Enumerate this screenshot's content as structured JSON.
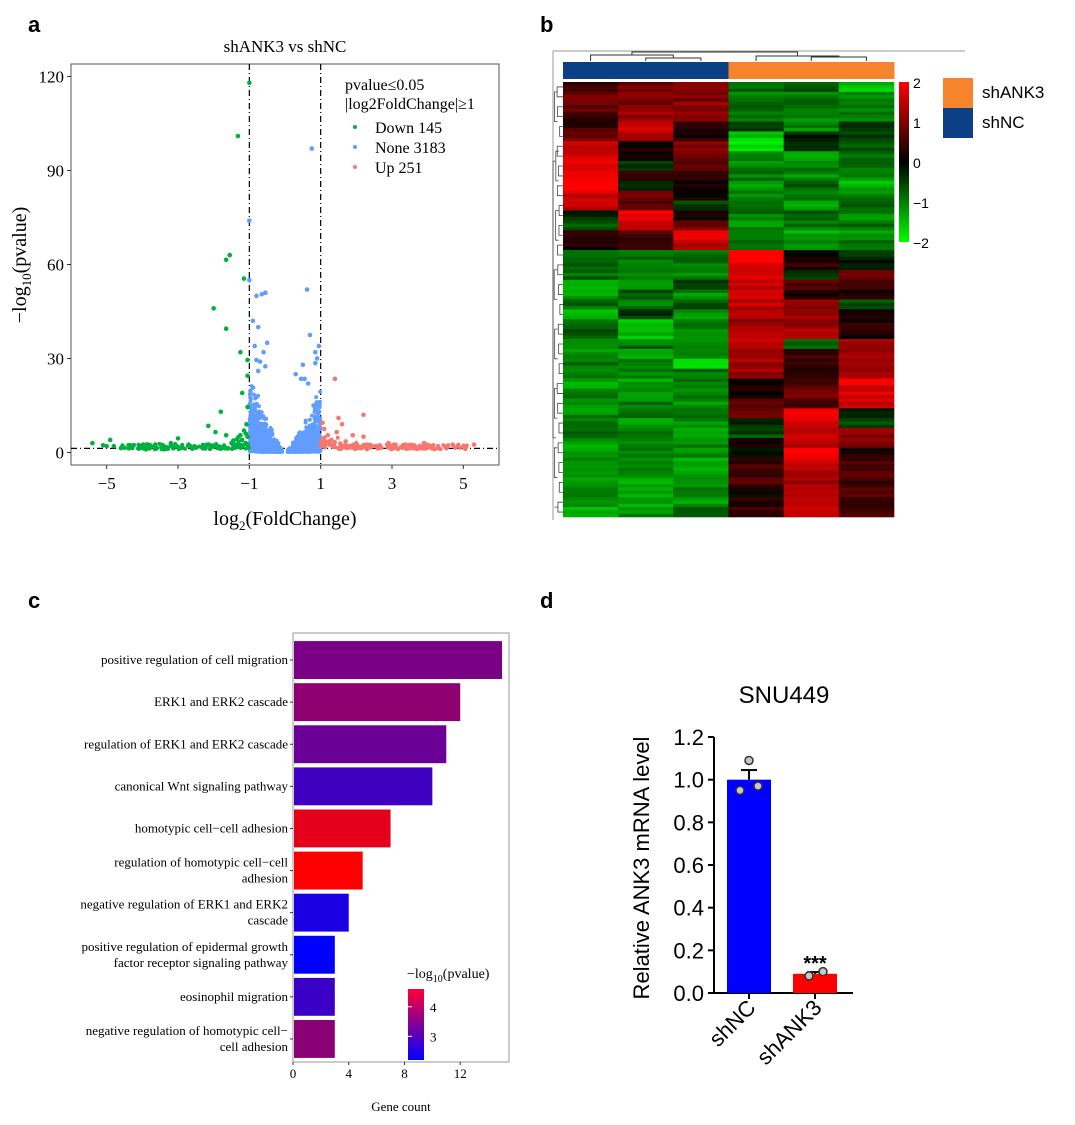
{
  "panels": {
    "a": "a",
    "b": "b",
    "c": "c",
    "d": "d"
  },
  "chart_data": [
    {
      "id": "volcano",
      "type": "scatter",
      "title": "shANK3 vs shNC",
      "xlabel_main": "log",
      "xlabel_sub": "2",
      "xlabel_rest": "(FoldChange)",
      "ylabel_main": "−log",
      "ylabel_sub": "10",
      "ylabel_rest": "(pvalue)",
      "xlim": [
        -6,
        6
      ],
      "ylim": [
        -4,
        124
      ],
      "xticks": [
        -5,
        -3,
        -1,
        1,
        3,
        5
      ],
      "xtick_labels": [
        "−5",
        "−3",
        "−1",
        "1",
        "3",
        "5"
      ],
      "yticks": [
        0,
        30,
        60,
        90,
        120
      ],
      "ytick_labels": [
        "0",
        "30",
        "60",
        "90",
        "120"
      ],
      "thresholds": {
        "log2fc": [
          -1,
          1
        ],
        "neg_log10_p": 1.3
      },
      "legend": {
        "title_line1": "pvalue≤0.05",
        "title_line2": "|log2FoldChange|≥1",
        "entries": [
          {
            "label": "Down 145",
            "color": "#00b140"
          },
          {
            "label": "None 3183",
            "color": "#619cff"
          },
          {
            "label": "Up 251",
            "color": "#f8766d"
          }
        ],
        "placement": "top-right"
      },
      "series": [
        {
          "name": "Down",
          "color": "#00b140",
          "count": 145,
          "points": [
            [
              -1.0,
              118
            ],
            [
              -1.32,
              101
            ],
            [
              -1.55,
              63
            ],
            [
              -1.65,
              61.5
            ],
            [
              -1.15,
              55.5
            ],
            [
              -2.0,
              46
            ],
            [
              -1.65,
              39.5
            ],
            [
              -1.25,
              32
            ],
            [
              -1.05,
              29.5
            ],
            [
              -1.05,
              24.5
            ],
            [
              -1.2,
              19
            ],
            [
              -1.05,
              14.5
            ],
            [
              -1.8,
              13
            ],
            [
              -2.15,
              8.5
            ],
            [
              -1.95,
              6.5
            ],
            [
              -1.65,
              5.5
            ],
            [
              -1.3,
              5
            ],
            [
              -1.1,
              6
            ],
            [
              -1.05,
              5
            ],
            [
              -1.2,
              4
            ],
            [
              -3.0,
              4.5
            ],
            [
              -3.2,
              3
            ],
            [
              -2.7,
              2.5
            ],
            [
              -4.9,
              4
            ],
            [
              -5.4,
              3
            ],
            [
              -5.0,
              2
            ],
            [
              -4.8,
              2
            ],
            [
              -4.5,
              1.5
            ],
            [
              -4.3,
              1.5
            ],
            [
              -4.1,
              1.2
            ],
            [
              -3.9,
              1
            ],
            [
              -3.6,
              1.5
            ],
            [
              -3.4,
              1
            ],
            [
              -2.5,
              1.5
            ],
            [
              -2.3,
              1.3
            ],
            [
              -2.1,
              1.2
            ],
            [
              -1.9,
              2
            ],
            [
              -1.7,
              1.5
            ],
            [
              -1.5,
              3
            ],
            [
              -1.4,
              2.5
            ],
            [
              -1.3,
              3.5
            ],
            [
              -1.2,
              2
            ],
            [
              -1.1,
              3
            ],
            [
              -1.05,
              2.5
            ],
            [
              -1.02,
              1.5
            ],
            [
              -1.4,
              1.5
            ],
            [
              -1.6,
              1.3
            ],
            [
              -1.8,
              1.2
            ],
            [
              -2.6,
              1.2
            ],
            [
              -2.9,
              1.5
            ],
            [
              -3.3,
              1.2
            ],
            [
              -3.8,
              1.3
            ],
            [
              -4.0,
              1.4
            ],
            [
              -4.6,
              1.4
            ],
            [
              -5.1,
              2.3
            ],
            [
              -1.15,
              7
            ],
            [
              -1.25,
              5.5
            ],
            [
              -1.35,
              4.2
            ],
            [
              -1.08,
              9
            ],
            [
              -1.45,
              3.8
            ]
          ]
        },
        {
          "name": "None",
          "color": "#619cff",
          "count": 3183,
          "points": [
            [
              0.75,
              97
            ],
            [
              -1.0,
              74
            ],
            [
              -1.0,
              55
            ],
            [
              0.62,
              52
            ],
            [
              -0.55,
              51
            ],
            [
              -0.65,
              50.5
            ],
            [
              -0.8,
              50
            ],
            [
              -0.9,
              42
            ],
            [
              -0.75,
              40
            ],
            [
              0.7,
              37.5
            ],
            [
              -0.5,
              35
            ],
            [
              -0.85,
              34
            ],
            [
              0.95,
              34
            ],
            [
              0.85,
              32
            ],
            [
              -0.6,
              32
            ],
            [
              0.9,
              30
            ],
            [
              0.85,
              28.5
            ],
            [
              0.5,
              28
            ],
            [
              -0.8,
              29.5
            ],
            [
              -0.7,
              29
            ],
            [
              0.3,
              25
            ],
            [
              0.45,
              23.5
            ],
            [
              0.55,
              23.5
            ],
            [
              -0.75,
              26
            ],
            [
              -0.55,
              27.5
            ],
            [
              0.65,
              22
            ],
            [
              0.95,
              13
            ],
            [
              0.95,
              11
            ],
            [
              -0.95,
              8
            ],
            [
              0.8,
              15
            ]
          ]
        },
        {
          "name": "Up",
          "color": "#f8766d",
          "count": 251,
          "points": [
            [
              1.4,
              23.5
            ],
            [
              2.2,
              12
            ],
            [
              1.5,
              11
            ],
            [
              1.05,
              9.5
            ],
            [
              1.6,
              9
            ],
            [
              1.1,
              7.5
            ],
            [
              1.45,
              6.5
            ],
            [
              1.9,
              5.5
            ],
            [
              2.2,
              5
            ],
            [
              1.2,
              5.5
            ],
            [
              1.3,
              4
            ],
            [
              1.7,
              3.5
            ],
            [
              2.0,
              3
            ],
            [
              2.9,
              3
            ],
            [
              3.1,
              2.5
            ],
            [
              3.9,
              3
            ],
            [
              4.1,
              2
            ],
            [
              4.7,
              2.5
            ],
            [
              5.3,
              2.5
            ],
            [
              5.0,
              2
            ],
            [
              4.5,
              1.8
            ],
            [
              3.6,
              1.8
            ],
            [
              3.3,
              1.5
            ],
            [
              2.7,
              1.5
            ],
            [
              2.4,
              1.6
            ],
            [
              1.25,
              2.5
            ],
            [
              1.55,
              2.8
            ],
            [
              1.8,
              2.0
            ],
            [
              2.6,
              1.3
            ],
            [
              3.5,
              1.3
            ],
            [
              4.3,
              1.5
            ],
            [
              4.85,
              2.1
            ],
            [
              1.1,
              3.2
            ],
            [
              1.35,
              1.8
            ],
            [
              1.9,
              1.6
            ]
          ]
        }
      ]
    },
    {
      "id": "heatmap",
      "type": "heatmap",
      "scale": {
        "min": -2,
        "max": 2,
        "ticks": [
          2,
          1,
          0,
          -1,
          -2
        ],
        "tick_labels": [
          "2",
          "1",
          "0",
          "−1",
          "−2"
        ],
        "colors": [
          "#00ff00",
          "#000000",
          "#ff0000"
        ]
      },
      "column_groups": [
        "shNC",
        "shNC",
        "shNC",
        "shANK3",
        "shANK3",
        "shANK3"
      ],
      "group_colors": {
        "shANK3": "#f5842d",
        "shNC": "#0b4184"
      },
      "legend": [
        {
          "label": "shANK3",
          "color": "#f5842d"
        },
        {
          "label": "shNC",
          "color": "#0b4184"
        }
      ],
      "rows": [
        [
          0.6,
          0.9,
          1.1,
          -0.8,
          -0.6,
          -1.5
        ],
        [
          0.9,
          1.1,
          1.0,
          -1.0,
          -0.9,
          -1.0
        ],
        [
          0.7,
          1.0,
          1.1,
          -0.9,
          -1.0,
          -0.9
        ],
        [
          0.3,
          1.2,
          1.0,
          -1.0,
          -1.2,
          -1.0
        ],
        [
          0.5,
          1.7,
          0.4,
          -0.4,
          -1.1,
          -0.6
        ],
        [
          0.8,
          1.3,
          0.2,
          -1.6,
          -0.3,
          -0.5
        ],
        [
          1.5,
          0.2,
          1.0,
          -1.8,
          -0.1,
          -0.7
        ],
        [
          1.6,
          0.1,
          0.9,
          -1.0,
          -1.3,
          -0.8
        ],
        [
          1.7,
          -0.4,
          0.8,
          -1.1,
          -1.0,
          -0.9
        ],
        [
          2.0,
          0.3,
          0.4,
          -0.9,
          -1.1,
          -1.0
        ],
        [
          1.9,
          -0.2,
          0.0,
          -1.2,
          -0.8,
          -1.4
        ],
        [
          1.6,
          0.8,
          0.1,
          -1.0,
          -1.0,
          -1.0
        ],
        [
          1.5,
          0.7,
          -0.5,
          -0.8,
          -1.2,
          -0.9
        ],
        [
          -0.4,
          1.8,
          0.1,
          -0.9,
          -0.9,
          -1.0
        ],
        [
          -0.6,
          1.5,
          0.9,
          -1.1,
          -1.0,
          -0.9
        ],
        [
          0.4,
          0.5,
          1.8,
          -0.8,
          -1.3,
          -1.1
        ],
        [
          0.2,
          0.3,
          1.5,
          -1.0,
          -1.1,
          -1.0
        ],
        [
          -0.9,
          -0.9,
          -0.8,
          2.0,
          0.0,
          -0.3
        ],
        [
          -0.8,
          -1.1,
          -0.9,
          1.8,
          0.4,
          -0.2
        ],
        [
          -0.8,
          -0.9,
          -1.0,
          1.7,
          -0.5,
          0.7
        ],
        [
          -1.2,
          -1.0,
          -0.6,
          1.6,
          0.6,
          0.4
        ],
        [
          -1.3,
          -0.6,
          -1.1,
          1.5,
          0.2,
          0.3
        ],
        [
          -0.9,
          -1.0,
          -0.7,
          1.5,
          1.2,
          -0.6
        ],
        [
          -1.5,
          -0.5,
          -1.1,
          1.3,
          1.3,
          0.2
        ],
        [
          -1.0,
          -1.4,
          -0.8,
          1.2,
          1.1,
          0.3
        ],
        [
          -0.6,
          -1.5,
          -1.3,
          1.3,
          1.4,
          0.1
        ],
        [
          -1.0,
          -0.9,
          -1.2,
          1.6,
          -0.8,
          1.2
        ],
        [
          -1.2,
          -1.3,
          -1.0,
          1.2,
          0.5,
          1.3
        ],
        [
          -0.9,
          -1.0,
          -1.7,
          1.3,
          0.3,
          1.1
        ],
        [
          -1.1,
          -1.0,
          -0.9,
          1.2,
          0.2,
          1.2
        ],
        [
          -1.3,
          -1.2,
          -1.0,
          0.2,
          0.6,
          1.8
        ],
        [
          -1.0,
          -1.1,
          -1.0,
          0.1,
          0.8,
          1.7
        ],
        [
          -1.2,
          -1.0,
          -1.1,
          0.7,
          0.4,
          1.6
        ],
        [
          -1.1,
          -1.0,
          -0.9,
          0.8,
          2.0,
          -0.4
        ],
        [
          -1.0,
          -1.2,
          -1.1,
          -0.4,
          1.7,
          -0.5
        ],
        [
          -0.9,
          -1.0,
          -1.3,
          -0.6,
          1.6,
          1.0
        ],
        [
          -1.2,
          -1.1,
          -1.0,
          0.3,
          1.5,
          1.1
        ],
        [
          -1.3,
          -0.9,
          -1.1,
          -0.1,
          1.9,
          0.3
        ],
        [
          -1.0,
          -1.2,
          -1.4,
          0.5,
          1.7,
          0.6
        ],
        [
          -1.1,
          -1.1,
          -1.2,
          0.4,
          1.4,
          0.7
        ],
        [
          -1.2,
          -1.3,
          -1.1,
          0.6,
          1.3,
          0.4
        ],
        [
          -1.0,
          -1.2,
          -1.0,
          0.0,
          1.6,
          0.8
        ],
        [
          -1.1,
          -1.3,
          -1.2,
          0.3,
          1.4,
          0.5
        ],
        [
          -1.4,
          -1.1,
          -0.8,
          0.5,
          1.5,
          0.6
        ]
      ]
    },
    {
      "id": "go-bar",
      "type": "bar",
      "orientation": "horizontal",
      "xlabel": "Gene count",
      "xlim": [
        0,
        15.5
      ],
      "xticks": [
        0,
        4,
        8,
        12
      ],
      "xtick_labels": [
        "0",
        "4",
        "8",
        "12"
      ],
      "categories": [
        [
          "positive regulation of cell migration"
        ],
        [
          "ERK1 and ERK2 cascade"
        ],
        [
          "regulation of ERK1 and ERK2 cascade"
        ],
        [
          "canonical Wnt signaling pathway"
        ],
        [
          "homotypic cell−cell adhesion"
        ],
        [
          "regulation of homotypic cell−cell",
          "adhesion"
        ],
        [
          "negative regulation of ERK1 and ERK2",
          "cascade"
        ],
        [
          "positive regulation of epidermal growth",
          "factor receptor signaling pathway"
        ],
        [
          "eosinophil migration"
        ],
        [
          "negative regulation of homotypic cell−",
          "cell adhesion"
        ]
      ],
      "values": [
        15,
        12,
        11,
        10,
        7,
        5,
        4,
        3,
        3,
        3
      ],
      "neg_log10_pvalue": [
        3.35,
        3.55,
        3.2,
        2.8,
        4.35,
        4.6,
        2.45,
        2.2,
        2.75,
        3.5
      ],
      "legend": {
        "title_main": "−log",
        "title_sub": "10",
        "title_rest": "(pvalue)",
        "ticks": [
          4,
          3
        ],
        "tick_labels": [
          "4",
          "3"
        ],
        "range": [
          2.2,
          4.6
        ],
        "colors": [
          "#0000ff",
          "#ff0000"
        ],
        "placement": "bottom-right"
      }
    },
    {
      "id": "qpcr-bar",
      "type": "bar",
      "title": "SNU449",
      "ylabel": "Relative ANK3 mRNA level",
      "ylim": [
        0,
        1.2
      ],
      "yticks": [
        0,
        0.2,
        0.4,
        0.6,
        0.8,
        1.0,
        1.2
      ],
      "ytick_labels": [
        "0.0",
        "0.2",
        "0.4",
        "0.6",
        "0.8",
        "1.0",
        "1.2"
      ],
      "categories": [
        "shNC",
        "shANK3"
      ],
      "values": [
        1.0,
        0.09
      ],
      "error": [
        0.045,
        0.008
      ],
      "colors": [
        "#0000ff",
        "#ff0000"
      ],
      "points": [
        [
          0.95,
          0.97,
          1.09
        ],
        [
          0.08,
          0.1
        ]
      ],
      "significance": [
        "",
        "***"
      ]
    }
  ]
}
